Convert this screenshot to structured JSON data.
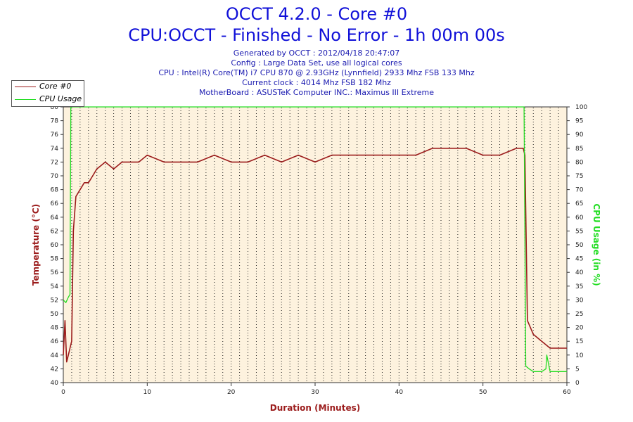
{
  "header": {
    "title": "OCCT 4.2.0 - Core #0",
    "subtitle": "CPU:OCCT - Finished - No Error - 1h 00m 00s",
    "info_lines": [
      "Generated by OCCT : 2012/04/18 20:47:07",
      "Config : Large Data Set, use all logical cores",
      "CPU : Intel(R) Core(TM) i7 CPU 870 @ 2.93GHz (Lynnfield) 2933 Mhz FSB 133 Mhz",
      "Current clock : 4014 Mhz FSB 182 Mhz",
      "MotherBoard : ASUSTeK Computer INC.: Maximus III Extreme"
    ]
  },
  "colors": {
    "temperature": "#9b1b1b",
    "cpu_usage": "#22dd22",
    "plot_background": "#fdf2de",
    "title": "#1010d8",
    "info": "#1a1ab0"
  },
  "chart_data": {
    "type": "line",
    "xlabel": "Duration (Minutes)",
    "ylabel": "Temperature (°C)",
    "y2label": "CPU Usage (in %)",
    "xlim": [
      0,
      60
    ],
    "ylim": [
      40,
      80
    ],
    "y2lim": [
      0,
      100
    ],
    "x_ticks": [
      0,
      10,
      20,
      30,
      40,
      50,
      60
    ],
    "y_ticks": [
      40,
      42,
      44,
      46,
      48,
      50,
      52,
      54,
      56,
      58,
      60,
      62,
      64,
      66,
      68,
      70,
      72,
      74,
      76,
      78,
      80
    ],
    "y2_ticks": [
      0,
      5,
      10,
      15,
      20,
      25,
      30,
      35,
      40,
      45,
      50,
      55,
      60,
      65,
      70,
      75,
      80,
      85,
      90,
      95,
      100
    ],
    "grid": "vertical dotted",
    "legend": "top-left",
    "series": [
      {
        "name": "Core #0",
        "axis": "left",
        "x": [
          0,
          0.2,
          0.4,
          0.6,
          0.8,
          1.0,
          1.2,
          1.5,
          2,
          2.5,
          3,
          3.5,
          4,
          5,
          6,
          7,
          8,
          9,
          10,
          12,
          14,
          16,
          18,
          20,
          22,
          24,
          26,
          28,
          30,
          32,
          34,
          36,
          38,
          40,
          42,
          44,
          46,
          48,
          50,
          52,
          54,
          54.8,
          55.0,
          55.3,
          56,
          57,
          58,
          59,
          60
        ],
        "y": [
          44,
          49,
          43,
          44,
          45,
          46,
          62,
          67,
          68,
          69,
          69,
          70,
          71,
          72,
          71,
          72,
          72,
          72,
          73,
          72,
          72,
          72,
          73,
          72,
          72,
          73,
          72,
          73,
          72,
          73,
          73,
          73,
          73,
          73,
          73,
          74,
          74,
          74,
          73,
          73,
          74,
          74,
          73,
          49,
          47,
          46,
          45,
          45,
          45
        ]
      },
      {
        "name": "CPU Usage",
        "axis": "right",
        "x": [
          0,
          0.3,
          0.6,
          0.8,
          0.9,
          1.0,
          1.2,
          2,
          10,
          20,
          30,
          40,
          50,
          54.5,
          54.8,
          54.9,
          55.1,
          55.5,
          56,
          57,
          57.5,
          57.6,
          58,
          59,
          60
        ],
        "y": [
          30,
          29,
          31,
          32,
          100,
          100,
          100,
          100,
          100,
          100,
          100,
          100,
          100,
          100,
          100,
          100,
          6,
          5,
          4,
          4,
          5,
          10,
          4,
          4,
          4
        ]
      }
    ]
  }
}
